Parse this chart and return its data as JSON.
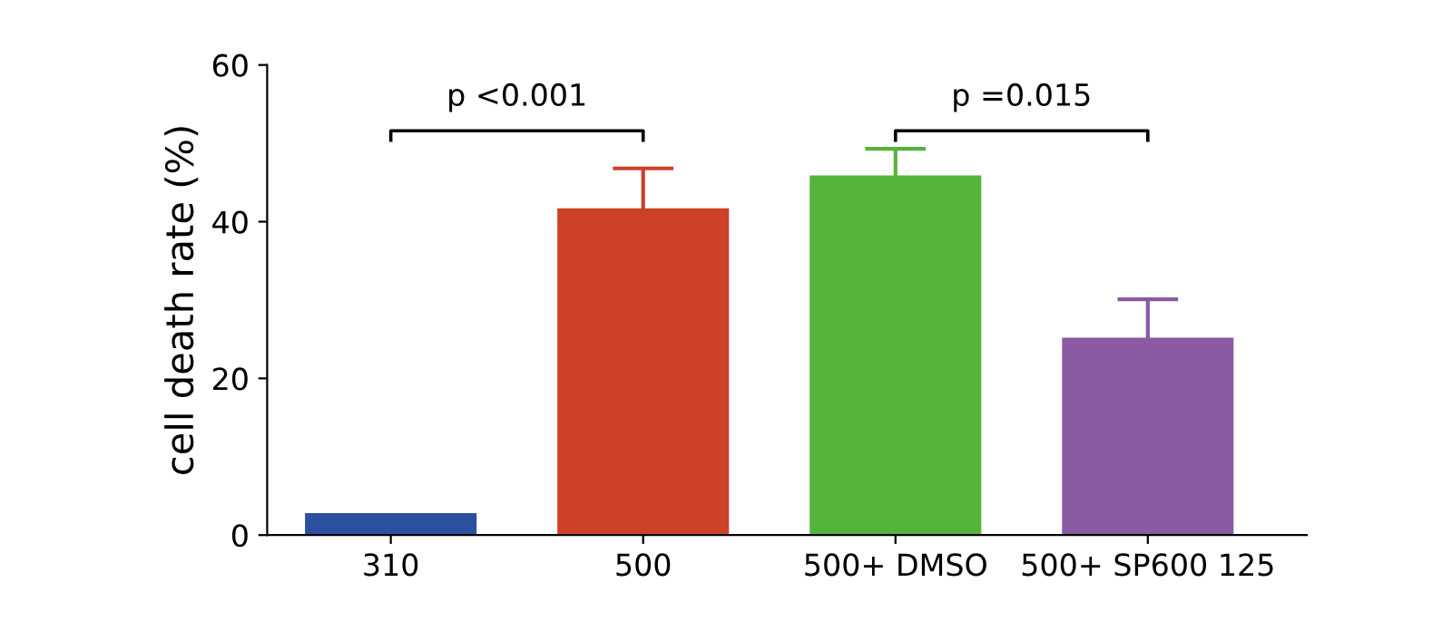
{
  "chart_data": {
    "type": "bar",
    "ylabel": "cell death rate (%)",
    "categories": [
      "310",
      "500",
      "500+ DMSO",
      "500+ SP600 125"
    ],
    "values": [
      2.8,
      41.7,
      45.9,
      25.2
    ],
    "colors": [
      "#2d4fa0",
      "#cc4128",
      "#54b43c",
      "#8a5aa3"
    ],
    "errors": [
      null,
      5.1,
      3.4,
      4.9
    ],
    "ylim": [
      0,
      60
    ],
    "yticks": [
      0,
      20,
      40,
      60
    ],
    "grid": false,
    "annotations": [
      "p <0.001",
      "p =0.015"
    ]
  }
}
